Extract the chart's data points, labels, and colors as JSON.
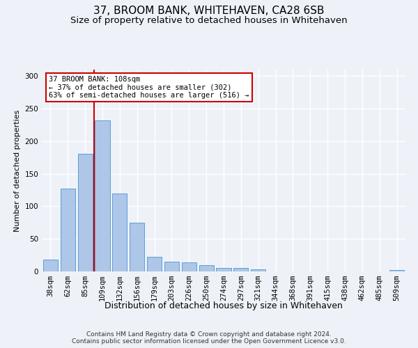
{
  "title1": "37, BROOM BANK, WHITEHAVEN, CA28 6SB",
  "title2": "Size of property relative to detached houses in Whitehaven",
  "xlabel": "Distribution of detached houses by size in Whitehaven",
  "ylabel": "Number of detached properties",
  "bar_labels": [
    "38sqm",
    "62sqm",
    "85sqm",
    "109sqm",
    "132sqm",
    "156sqm",
    "179sqm",
    "203sqm",
    "226sqm",
    "250sqm",
    "274sqm",
    "297sqm",
    "321sqm",
    "344sqm",
    "368sqm",
    "391sqm",
    "415sqm",
    "438sqm",
    "462sqm",
    "485sqm",
    "509sqm"
  ],
  "bar_heights": [
    18,
    127,
    181,
    232,
    120,
    75,
    22,
    15,
    14,
    10,
    5,
    5,
    3,
    0,
    0,
    0,
    0,
    0,
    0,
    0,
    2
  ],
  "bar_color": "#aec6e8",
  "bar_edge_color": "#5a9fd4",
  "property_bin_index": 3,
  "red_line_color": "#cc0000",
  "annotation_text": "37 BROOM BANK: 108sqm\n← 37% of detached houses are smaller (302)\n63% of semi-detached houses are larger (516) →",
  "annotation_box_color": "#ffffff",
  "annotation_box_edge": "#cc0000",
  "ylim": [
    0,
    310
  ],
  "yticks": [
    0,
    50,
    100,
    150,
    200,
    250,
    300
  ],
  "footer_text": "Contains HM Land Registry data © Crown copyright and database right 2024.\nContains public sector information licensed under the Open Government Licence v3.0.",
  "bg_color": "#eef2f8",
  "grid_color": "#ffffff",
  "title1_fontsize": 11,
  "title2_fontsize": 9.5,
  "xlabel_fontsize": 9,
  "ylabel_fontsize": 8,
  "footer_fontsize": 6.5,
  "tick_fontsize": 7.5,
  "annot_fontsize": 7.5
}
